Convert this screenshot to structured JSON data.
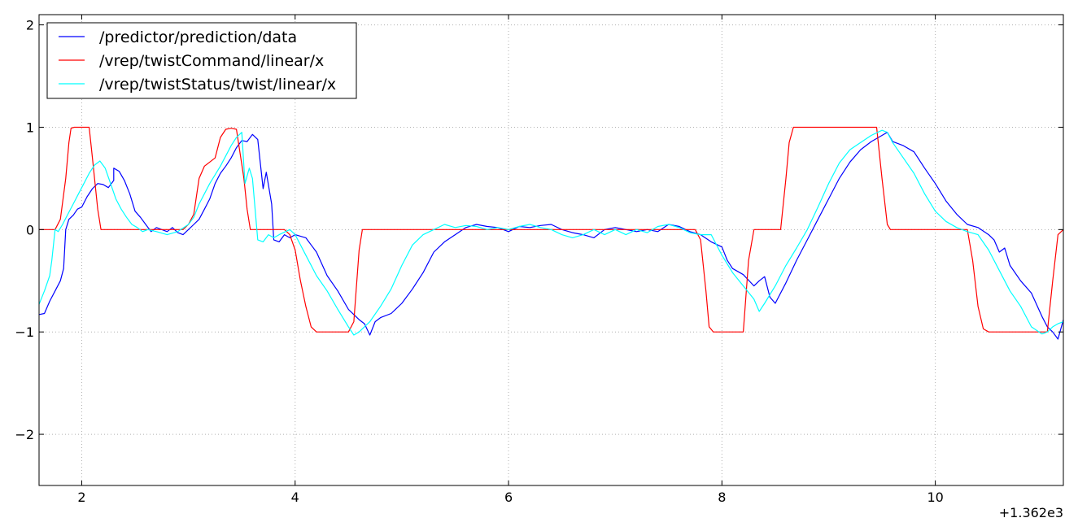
{
  "chart_data": {
    "type": "line",
    "title": "",
    "xlabel": "",
    "ylabel": "",
    "x_offset_label": "+1.362e3",
    "xlim": [
      1.6,
      11.2
    ],
    "ylim": [
      -2.5,
      2.1
    ],
    "xticks": [
      2,
      4,
      6,
      8,
      10
    ],
    "yticks": [
      -2,
      -1,
      0,
      1,
      2
    ],
    "xtick_labels": [
      "2",
      "4",
      "6",
      "8",
      "10"
    ],
    "ytick_labels": [
      "−2",
      "−1",
      "0",
      "1",
      "2"
    ],
    "grid": true,
    "legend_position": "top-left",
    "series": [
      {
        "name": "/predictor/prediction/data",
        "color": "#0000ff",
        "points": [
          [
            1.6,
            -0.83
          ],
          [
            1.65,
            -0.82
          ],
          [
            1.7,
            -0.7
          ],
          [
            1.75,
            -0.6
          ],
          [
            1.8,
            -0.5
          ],
          [
            1.83,
            -0.38
          ],
          [
            1.85,
            0.0
          ],
          [
            1.88,
            0.1
          ],
          [
            1.92,
            0.14
          ],
          [
            1.96,
            0.2
          ],
          [
            2.0,
            0.22
          ],
          [
            2.05,
            0.32
          ],
          [
            2.1,
            0.4
          ],
          [
            2.15,
            0.45
          ],
          [
            2.2,
            0.44
          ],
          [
            2.25,
            0.41
          ],
          [
            2.3,
            0.48
          ],
          [
            2.3,
            0.6
          ],
          [
            2.35,
            0.57
          ],
          [
            2.4,
            0.48
          ],
          [
            2.45,
            0.35
          ],
          [
            2.5,
            0.18
          ],
          [
            2.55,
            0.12
          ],
          [
            2.6,
            0.05
          ],
          [
            2.65,
            -0.02
          ],
          [
            2.7,
            0.02
          ],
          [
            2.75,
            0.0
          ],
          [
            2.8,
            -0.02
          ],
          [
            2.85,
            0.02
          ],
          [
            2.9,
            -0.03
          ],
          [
            2.95,
            -0.05
          ],
          [
            3.0,
            0.0
          ],
          [
            3.05,
            0.05
          ],
          [
            3.1,
            0.1
          ],
          [
            3.15,
            0.2
          ],
          [
            3.2,
            0.3
          ],
          [
            3.25,
            0.45
          ],
          [
            3.3,
            0.55
          ],
          [
            3.35,
            0.62
          ],
          [
            3.4,
            0.7
          ],
          [
            3.45,
            0.8
          ],
          [
            3.5,
            0.87
          ],
          [
            3.55,
            0.86
          ],
          [
            3.6,
            0.93
          ],
          [
            3.65,
            0.88
          ],
          [
            3.7,
            0.4
          ],
          [
            3.73,
            0.56
          ],
          [
            3.78,
            0.25
          ],
          [
            3.8,
            -0.1
          ],
          [
            3.85,
            -0.12
          ],
          [
            3.9,
            -0.05
          ],
          [
            3.95,
            -0.08
          ],
          [
            4.0,
            -0.05
          ],
          [
            4.1,
            -0.08
          ],
          [
            4.15,
            -0.15
          ],
          [
            4.2,
            -0.22
          ],
          [
            4.3,
            -0.45
          ],
          [
            4.4,
            -0.6
          ],
          [
            4.5,
            -0.78
          ],
          [
            4.6,
            -0.88
          ],
          [
            4.65,
            -0.92
          ],
          [
            4.7,
            -1.03
          ],
          [
            4.75,
            -0.9
          ],
          [
            4.8,
            -0.86
          ],
          [
            4.9,
            -0.82
          ],
          [
            5.0,
            -0.72
          ],
          [
            5.1,
            -0.58
          ],
          [
            5.2,
            -0.42
          ],
          [
            5.3,
            -0.22
          ],
          [
            5.4,
            -0.12
          ],
          [
            5.5,
            -0.05
          ],
          [
            5.6,
            0.02
          ],
          [
            5.7,
            0.05
          ],
          [
            5.8,
            0.03
          ],
          [
            5.9,
            0.02
          ],
          [
            6.0,
            -0.02
          ],
          [
            6.1,
            0.03
          ],
          [
            6.2,
            0.02
          ],
          [
            6.3,
            0.04
          ],
          [
            6.4,
            0.05
          ],
          [
            6.5,
            0.0
          ],
          [
            6.6,
            -0.03
          ],
          [
            6.7,
            -0.05
          ],
          [
            6.8,
            -0.08
          ],
          [
            6.9,
            0.0
          ],
          [
            7.0,
            0.02
          ],
          [
            7.1,
            0.0
          ],
          [
            7.2,
            -0.02
          ],
          [
            7.3,
            0.0
          ],
          [
            7.4,
            -0.02
          ],
          [
            7.5,
            0.05
          ],
          [
            7.6,
            0.03
          ],
          [
            7.7,
            -0.02
          ],
          [
            7.8,
            -0.05
          ],
          [
            7.9,
            -0.12
          ],
          [
            8.0,
            -0.17
          ],
          [
            8.05,
            -0.3
          ],
          [
            8.1,
            -0.38
          ],
          [
            8.2,
            -0.44
          ],
          [
            8.3,
            -0.55
          ],
          [
            8.35,
            -0.5
          ],
          [
            8.4,
            -0.46
          ],
          [
            8.45,
            -0.66
          ],
          [
            8.5,
            -0.72
          ],
          [
            8.6,
            -0.52
          ],
          [
            8.7,
            -0.3
          ],
          [
            8.8,
            -0.1
          ],
          [
            8.9,
            0.1
          ],
          [
            9.0,
            0.3
          ],
          [
            9.1,
            0.5
          ],
          [
            9.2,
            0.66
          ],
          [
            9.3,
            0.78
          ],
          [
            9.4,
            0.86
          ],
          [
            9.5,
            0.92
          ],
          [
            9.55,
            0.95
          ],
          [
            9.6,
            0.86
          ],
          [
            9.7,
            0.82
          ],
          [
            9.8,
            0.76
          ],
          [
            9.9,
            0.6
          ],
          [
            10.0,
            0.45
          ],
          [
            10.1,
            0.28
          ],
          [
            10.2,
            0.15
          ],
          [
            10.3,
            0.05
          ],
          [
            10.4,
            0.02
          ],
          [
            10.5,
            -0.05
          ],
          [
            10.55,
            -0.1
          ],
          [
            10.6,
            -0.22
          ],
          [
            10.65,
            -0.18
          ],
          [
            10.7,
            -0.35
          ],
          [
            10.8,
            -0.5
          ],
          [
            10.9,
            -0.62
          ],
          [
            11.0,
            -0.85
          ],
          [
            11.05,
            -0.95
          ],
          [
            11.1,
            -1.0
          ],
          [
            11.15,
            -1.07
          ],
          [
            11.2,
            -0.88
          ]
        ]
      },
      {
        "name": "/vrep/twistCommand/linear/x",
        "color": "#ff0000",
        "points": [
          [
            1.6,
            0.0
          ],
          [
            1.75,
            0.0
          ],
          [
            1.8,
            0.1
          ],
          [
            1.85,
            0.5
          ],
          [
            1.88,
            0.85
          ],
          [
            1.9,
            0.99
          ],
          [
            1.93,
            1.0
          ],
          [
            2.07,
            1.0
          ],
          [
            2.1,
            0.7
          ],
          [
            2.15,
            0.2
          ],
          [
            2.18,
            0.0
          ],
          [
            2.95,
            0.0
          ],
          [
            3.0,
            0.05
          ],
          [
            3.05,
            0.15
          ],
          [
            3.1,
            0.5
          ],
          [
            3.15,
            0.62
          ],
          [
            3.2,
            0.66
          ],
          [
            3.25,
            0.7
          ],
          [
            3.3,
            0.9
          ],
          [
            3.35,
            0.98
          ],
          [
            3.4,
            0.99
          ],
          [
            3.45,
            0.98
          ],
          [
            3.52,
            0.5
          ],
          [
            3.55,
            0.2
          ],
          [
            3.58,
            0.0
          ],
          [
            3.9,
            0.0
          ],
          [
            3.95,
            -0.05
          ],
          [
            4.0,
            -0.2
          ],
          [
            4.05,
            -0.5
          ],
          [
            4.1,
            -0.75
          ],
          [
            4.15,
            -0.95
          ],
          [
            4.2,
            -1.0
          ],
          [
            4.5,
            -1.0
          ],
          [
            4.55,
            -0.9
          ],
          [
            4.6,
            -0.2
          ],
          [
            4.63,
            0.0
          ],
          [
            7.75,
            0.0
          ],
          [
            7.8,
            -0.1
          ],
          [
            7.85,
            -0.6
          ],
          [
            7.88,
            -0.95
          ],
          [
            7.92,
            -1.0
          ],
          [
            8.2,
            -1.0
          ],
          [
            8.25,
            -0.3
          ],
          [
            8.3,
            0.0
          ],
          [
            8.55,
            0.0
          ],
          [
            8.6,
            0.5
          ],
          [
            8.63,
            0.85
          ],
          [
            8.67,
            1.0
          ],
          [
            9.45,
            1.0
          ],
          [
            9.5,
            0.5
          ],
          [
            9.55,
            0.05
          ],
          [
            9.58,
            0.0
          ],
          [
            10.3,
            0.0
          ],
          [
            10.35,
            -0.3
          ],
          [
            10.4,
            -0.75
          ],
          [
            10.45,
            -0.97
          ],
          [
            10.5,
            -1.0
          ],
          [
            11.05,
            -1.0
          ],
          [
            11.1,
            -0.5
          ],
          [
            11.15,
            -0.05
          ],
          [
            11.2,
            0.0
          ]
        ]
      },
      {
        "name": "/vrep/twistStatus/twist/linear/x",
        "color": "#00ffff",
        "points": [
          [
            1.6,
            -0.73
          ],
          [
            1.65,
            -0.6
          ],
          [
            1.7,
            -0.45
          ],
          [
            1.72,
            -0.3
          ],
          [
            1.75,
            0.0
          ],
          [
            1.78,
            -0.02
          ],
          [
            1.82,
            0.05
          ],
          [
            1.87,
            0.15
          ],
          [
            1.92,
            0.25
          ],
          [
            1.97,
            0.35
          ],
          [
            2.02,
            0.45
          ],
          [
            2.07,
            0.55
          ],
          [
            2.12,
            0.63
          ],
          [
            2.17,
            0.67
          ],
          [
            2.22,
            0.6
          ],
          [
            2.27,
            0.45
          ],
          [
            2.32,
            0.3
          ],
          [
            2.37,
            0.2
          ],
          [
            2.42,
            0.12
          ],
          [
            2.47,
            0.05
          ],
          [
            2.52,
            0.02
          ],
          [
            2.57,
            -0.02
          ],
          [
            2.62,
            0.0
          ],
          [
            2.7,
            -0.02
          ],
          [
            2.8,
            -0.05
          ],
          [
            2.9,
            -0.02
          ],
          [
            3.0,
            0.05
          ],
          [
            3.05,
            0.12
          ],
          [
            3.1,
            0.25
          ],
          [
            3.2,
            0.45
          ],
          [
            3.3,
            0.62
          ],
          [
            3.35,
            0.72
          ],
          [
            3.4,
            0.82
          ],
          [
            3.45,
            0.9
          ],
          [
            3.5,
            0.95
          ],
          [
            3.53,
            0.45
          ],
          [
            3.57,
            0.6
          ],
          [
            3.6,
            0.5
          ],
          [
            3.65,
            -0.1
          ],
          [
            3.7,
            -0.12
          ],
          [
            3.75,
            -0.05
          ],
          [
            3.8,
            -0.08
          ],
          [
            3.85,
            -0.05
          ],
          [
            3.95,
            0.0
          ],
          [
            4.0,
            -0.05
          ],
          [
            4.1,
            -0.25
          ],
          [
            4.2,
            -0.45
          ],
          [
            4.3,
            -0.6
          ],
          [
            4.4,
            -0.78
          ],
          [
            4.5,
            -0.95
          ],
          [
            4.55,
            -1.03
          ],
          [
            4.6,
            -1.0
          ],
          [
            4.7,
            -0.9
          ],
          [
            4.8,
            -0.75
          ],
          [
            4.9,
            -0.58
          ],
          [
            5.0,
            -0.35
          ],
          [
            5.1,
            -0.15
          ],
          [
            5.2,
            -0.05
          ],
          [
            5.3,
            0.0
          ],
          [
            5.4,
            0.05
          ],
          [
            5.5,
            0.02
          ],
          [
            5.6,
            0.04
          ],
          [
            5.7,
            0.03
          ],
          [
            5.8,
            0.0
          ],
          [
            5.9,
            0.02
          ],
          [
            6.0,
            0.0
          ],
          [
            6.1,
            0.03
          ],
          [
            6.2,
            0.05
          ],
          [
            6.3,
            0.02
          ],
          [
            6.4,
            0.0
          ],
          [
            6.5,
            -0.05
          ],
          [
            6.6,
            -0.08
          ],
          [
            6.7,
            -0.05
          ],
          [
            6.8,
            0.0
          ],
          [
            6.9,
            -0.05
          ],
          [
            7.0,
            0.0
          ],
          [
            7.1,
            -0.05
          ],
          [
            7.2,
            0.0
          ],
          [
            7.3,
            -0.03
          ],
          [
            7.4,
            0.03
          ],
          [
            7.5,
            0.05
          ],
          [
            7.6,
            0.02
          ],
          [
            7.7,
            -0.03
          ],
          [
            7.8,
            -0.05
          ],
          [
            7.9,
            -0.05
          ],
          [
            8.0,
            -0.25
          ],
          [
            8.1,
            -0.42
          ],
          [
            8.2,
            -0.55
          ],
          [
            8.3,
            -0.68
          ],
          [
            8.35,
            -0.8
          ],
          [
            8.4,
            -0.72
          ],
          [
            8.5,
            -0.55
          ],
          [
            8.6,
            -0.35
          ],
          [
            8.7,
            -0.18
          ],
          [
            8.8,
            0.0
          ],
          [
            8.9,
            0.22
          ],
          [
            9.0,
            0.45
          ],
          [
            9.1,
            0.65
          ],
          [
            9.2,
            0.78
          ],
          [
            9.3,
            0.85
          ],
          [
            9.4,
            0.92
          ],
          [
            9.5,
            0.97
          ],
          [
            9.55,
            0.95
          ],
          [
            9.6,
            0.85
          ],
          [
            9.7,
            0.7
          ],
          [
            9.8,
            0.55
          ],
          [
            9.9,
            0.35
          ],
          [
            10.0,
            0.18
          ],
          [
            10.1,
            0.08
          ],
          [
            10.2,
            0.02
          ],
          [
            10.3,
            -0.02
          ],
          [
            10.4,
            -0.05
          ],
          [
            10.5,
            -0.2
          ],
          [
            10.6,
            -0.4
          ],
          [
            10.7,
            -0.6
          ],
          [
            10.8,
            -0.75
          ],
          [
            10.9,
            -0.95
          ],
          [
            11.0,
            -1.02
          ],
          [
            11.05,
            -1.0
          ],
          [
            11.1,
            -0.95
          ],
          [
            11.15,
            -0.92
          ],
          [
            11.2,
            -0.9
          ]
        ]
      }
    ]
  }
}
